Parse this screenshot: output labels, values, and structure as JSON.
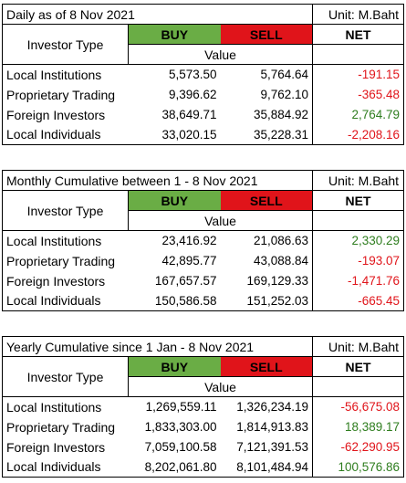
{
  "colors": {
    "buy_bg": "#6aad45",
    "sell_bg": "#e0141a",
    "negative": "#e0141a",
    "positive": "#2e7d1e"
  },
  "tables": [
    {
      "title": "Daily as of 8 Nov 2021",
      "unit": "Unit: M.Baht",
      "header": {
        "type": "Investor Type",
        "buy": "BUY",
        "sell": "SELL",
        "net": "NET",
        "value": "Value"
      },
      "rows": [
        {
          "type": "Local Institutions",
          "buy": "5,573.50",
          "sell": "5,764.64",
          "net": "-191.15",
          "sign": "neg"
        },
        {
          "type": "Proprietary Trading",
          "buy": "9,396.62",
          "sell": "9,762.10",
          "net": "-365.48",
          "sign": "neg"
        },
        {
          "type": "Foreign Investors",
          "buy": "38,649.71",
          "sell": "35,884.92",
          "net": "2,764.79",
          "sign": "pos"
        },
        {
          "type": "Local Individuals",
          "buy": "33,020.15",
          "sell": "35,228.31",
          "net": "-2,208.16",
          "sign": "neg"
        }
      ]
    },
    {
      "title": "Monthly Cumulative between 1 - 8 Nov 2021",
      "unit": "Unit: M.Baht",
      "header": {
        "type": "Investor Type",
        "buy": "BUY",
        "sell": "SELL",
        "net": "NET",
        "value": "Value"
      },
      "rows": [
        {
          "type": "Local Institutions",
          "buy": "23,416.92",
          "sell": "21,086.63",
          "net": "2,330.29",
          "sign": "pos"
        },
        {
          "type": "Proprietary Trading",
          "buy": "42,895.77",
          "sell": "43,088.84",
          "net": "-193.07",
          "sign": "neg"
        },
        {
          "type": "Foreign Investors",
          "buy": "167,657.57",
          "sell": "169,129.33",
          "net": "-1,471.76",
          "sign": "neg"
        },
        {
          "type": "Local Individuals",
          "buy": "150,586.58",
          "sell": "151,252.03",
          "net": "-665.45",
          "sign": "neg"
        }
      ]
    },
    {
      "title": "Yearly Cumulative since 1 Jan - 8 Nov 2021",
      "unit": "Unit: M.Baht",
      "header": {
        "type": "Investor Type",
        "buy": "BUY",
        "sell": "SELL",
        "net": "NET",
        "value": "Value"
      },
      "rows": [
        {
          "type": "Local Institutions",
          "buy": "1,269,559.11",
          "sell": "1,326,234.19",
          "net": "-56,675.08",
          "sign": "neg"
        },
        {
          "type": "Proprietary Trading",
          "buy": "1,833,303.00",
          "sell": "1,814,913.83",
          "net": "18,389.17",
          "sign": "pos"
        },
        {
          "type": "Foreign Investors",
          "buy": "7,059,100.58",
          "sell": "7,121,391.53",
          "net": "-62,290.95",
          "sign": "neg"
        },
        {
          "type": "Local Individuals",
          "buy": "8,202,061.80",
          "sell": "8,101,484.94",
          "net": "100,576.86",
          "sign": "pos"
        }
      ]
    }
  ]
}
